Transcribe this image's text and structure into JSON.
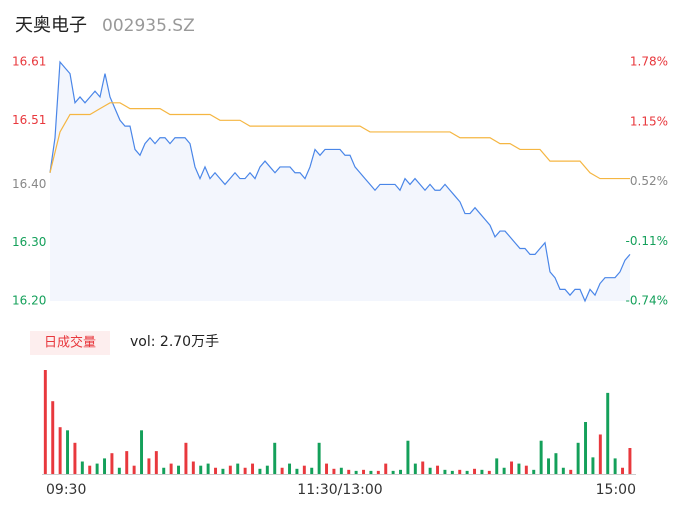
{
  "chart_data": {
    "type": "intraday",
    "title": "天奥电子",
    "subtitle": "002935.SZ",
    "xlim": [
      0,
      240
    ],
    "xticks": [
      {
        "value": 0,
        "label": "09:30"
      },
      {
        "value": 120,
        "label": "11:30/13:00"
      },
      {
        "value": 240,
        "label": "15:00"
      }
    ],
    "ylim": [
      16.2,
      16.61
    ],
    "yticks": [
      {
        "value": 16.61,
        "label": "16.61"
      },
      {
        "value": 16.51,
        "label": "16.51"
      },
      {
        "value": 16.4,
        "label": "16.40"
      },
      {
        "value": 16.3,
        "label": "16.30"
      },
      {
        "value": 16.2,
        "label": "16.20"
      }
    ],
    "y2lim": [
      -0.74,
      1.78
    ],
    "y2ticks": [
      {
        "value": 1.78,
        "label": "1.78%"
      },
      {
        "value": 1.15,
        "label": "1.15%"
      },
      {
        "value": 0.52,
        "label": "0.52%"
      },
      {
        "value": -0.11,
        "label": "-0.11%"
      },
      {
        "value": -0.74,
        "label": "-0.74%"
      }
    ],
    "ytick_colors": [
      "#e8383d",
      "#e8383d",
      "#888888",
      "#14a05a",
      "#14a05a"
    ],
    "series": [
      {
        "name": "price",
        "color": "#4a86e8",
        "values": [
          16.42,
          16.48,
          16.61,
          16.6,
          16.59,
          16.54,
          16.55,
          16.54,
          16.55,
          16.56,
          16.55,
          16.59,
          16.55,
          16.53,
          16.51,
          16.5,
          16.5,
          16.46,
          16.45,
          16.47,
          16.48,
          16.47,
          16.48,
          16.48,
          16.47,
          16.48,
          16.48,
          16.48,
          16.47,
          16.43,
          16.41,
          16.43,
          16.41,
          16.42,
          16.41,
          16.4,
          16.41,
          16.42,
          16.41,
          16.41,
          16.42,
          16.41,
          16.43,
          16.44,
          16.43,
          16.42,
          16.43,
          16.43,
          16.43,
          16.42,
          16.42,
          16.41,
          16.43,
          16.46,
          16.45,
          16.46,
          16.46,
          16.46,
          16.46,
          16.45,
          16.45,
          16.43,
          16.42,
          16.41,
          16.4,
          16.39,
          16.4,
          16.4,
          16.4,
          16.4,
          16.39,
          16.41,
          16.4,
          16.41,
          16.4,
          16.39,
          16.4,
          16.39,
          16.39,
          16.4,
          16.39,
          16.38,
          16.37,
          16.35,
          16.35,
          16.36,
          16.35,
          16.34,
          16.33,
          16.31,
          16.32,
          16.32,
          16.31,
          16.3,
          16.29,
          16.29,
          16.28,
          16.28,
          16.29,
          16.3,
          16.25,
          16.24,
          16.22,
          16.22,
          16.21,
          16.22,
          16.22,
          16.2,
          16.22,
          16.21,
          16.23,
          16.24,
          16.24,
          16.24,
          16.25,
          16.27,
          16.28
        ]
      },
      {
        "name": "average",
        "color": "#f5b642",
        "values": [
          16.42,
          16.49,
          16.52,
          16.52,
          16.52,
          16.53,
          16.54,
          16.54,
          16.53,
          16.53,
          16.53,
          16.53,
          16.52,
          16.52,
          16.52,
          16.52,
          16.52,
          16.51,
          16.51,
          16.51,
          16.5,
          16.5,
          16.5,
          16.5,
          16.5,
          16.5,
          16.5,
          16.5,
          16.5,
          16.5,
          16.5,
          16.5,
          16.49,
          16.49,
          16.49,
          16.49,
          16.49,
          16.49,
          16.49,
          16.49,
          16.49,
          16.48,
          16.48,
          16.48,
          16.48,
          16.47,
          16.47,
          16.46,
          16.46,
          16.46,
          16.44,
          16.44,
          16.44,
          16.44,
          16.42,
          16.41,
          16.41,
          16.41,
          16.41
        ]
      }
    ],
    "volume": {
      "label": "日成交量",
      "text": "vol: 2.70万手",
      "ylim": [
        0,
        100
      ],
      "up_color": "#e8383d",
      "down_color": "#14a05a",
      "values": [
        100,
        70,
        45,
        42,
        30,
        12,
        8,
        10,
        15,
        20,
        6,
        22,
        8,
        42,
        15,
        22,
        6,
        10,
        8,
        30,
        12,
        8,
        10,
        6,
        5,
        8,
        10,
        6,
        10,
        5,
        8,
        30,
        6,
        10,
        5,
        8,
        6,
        30,
        10,
        5,
        6,
        4,
        3,
        4,
        3,
        3,
        10,
        3,
        4,
        32,
        10,
        12,
        6,
        8,
        4,
        3,
        4,
        3,
        5,
        4,
        3,
        15,
        6,
        12,
        10,
        8,
        4,
        32,
        15,
        20,
        6,
        4,
        30,
        50,
        16,
        38,
        78,
        15,
        6,
        25
      ],
      "rising": [
        true,
        true,
        true,
        false,
        true,
        false,
        true,
        false,
        false,
        true,
        false,
        true,
        true,
        false,
        true,
        true,
        false,
        true,
        false,
        true,
        true,
        false,
        false,
        true,
        false,
        true,
        false,
        true,
        true,
        false,
        false,
        false,
        true,
        false,
        false,
        true,
        false,
        false,
        true,
        true,
        false,
        true,
        false,
        true,
        false,
        true,
        true,
        false,
        false,
        false,
        false,
        true,
        false,
        true,
        false,
        false,
        true,
        false,
        true,
        false,
        true,
        false,
        false,
        true,
        false,
        true,
        false,
        false,
        false,
        false,
        false,
        true,
        false,
        false,
        false,
        true,
        false,
        false,
        true,
        true
      ]
    }
  }
}
